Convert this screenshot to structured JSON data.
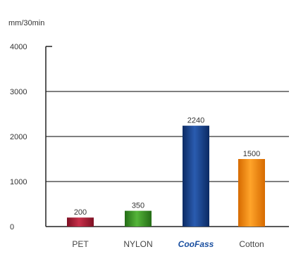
{
  "chart_data": {
    "type": "bar",
    "ylabel": "mm/30min",
    "categories": [
      "PET",
      "NYLON",
      "CooFass",
      "Cotton"
    ],
    "values": [
      200,
      350,
      2240,
      1500
    ],
    "value_labels": [
      "200",
      "350",
      "2240",
      "1500"
    ],
    "ylim": [
      0,
      4000
    ],
    "yticks": [
      0,
      1000,
      2000,
      3000,
      4000
    ],
    "ytick_labels": [
      "0",
      "1000",
      "2000",
      "3000",
      "4000"
    ],
    "grid": true,
    "legend": "none",
    "colors": [
      "#b5213a",
      "#3f9a2a",
      "#163f8a",
      "#f08a10"
    ],
    "highlight_label_color": "#1a4fa0"
  }
}
